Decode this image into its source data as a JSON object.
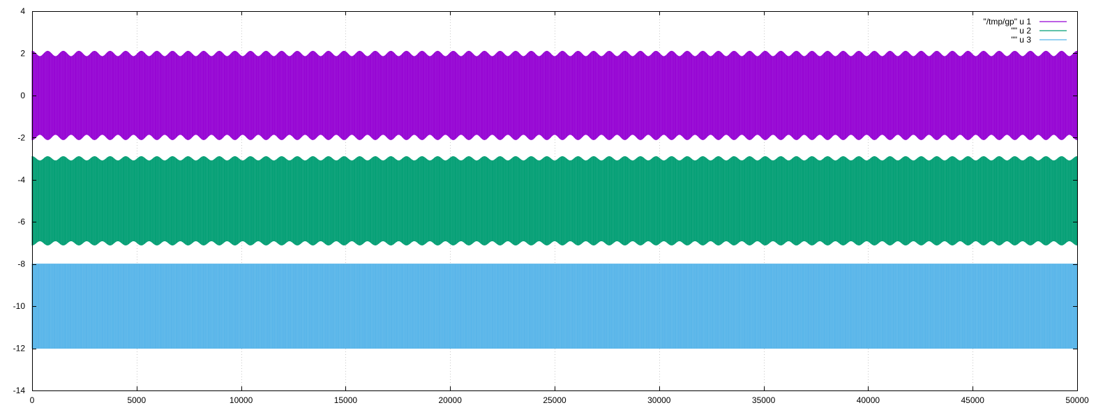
{
  "chart_data": {
    "type": "line",
    "title": "",
    "xlabel": "",
    "ylabel": "",
    "xlim": [
      0,
      50000
    ],
    "ylim": [
      -14,
      4
    ],
    "xticks": [
      0,
      5000,
      10000,
      15000,
      20000,
      25000,
      30000,
      35000,
      40000,
      45000,
      50000
    ],
    "yticks": [
      -14,
      -12,
      -10,
      -8,
      -6,
      -4,
      -2,
      0,
      2,
      4
    ],
    "x_tick_labels": [
      "0",
      "5000",
      "10000",
      "15000",
      "20000",
      "25000",
      "30000",
      "35000",
      "40000",
      "45000",
      "50000"
    ],
    "y_tick_labels": [
      "-14",
      "-12",
      "-10",
      "-8",
      "-6",
      "-4",
      "-2",
      "0",
      "2",
      "4"
    ],
    "grid": true,
    "legend_position": "top-right",
    "series": [
      {
        "name": "\"/tmp/gp\" u 1",
        "color": "#9400d3",
        "center": 0,
        "amplitude_min": 1.85,
        "amplitude_max": 2.1,
        "envelope_cycles": 67
      },
      {
        "name": "\"\" u 2",
        "color": "#009e73",
        "center": -5,
        "amplitude_min": 1.9,
        "amplitude_max": 2.1,
        "envelope_cycles": 67
      },
      {
        "name": "\"\" u 3",
        "color": "#56b4e9",
        "center": -10,
        "amplitude_min": 2.0,
        "amplitude_max": 2.0,
        "envelope_cycles": 0
      }
    ]
  }
}
